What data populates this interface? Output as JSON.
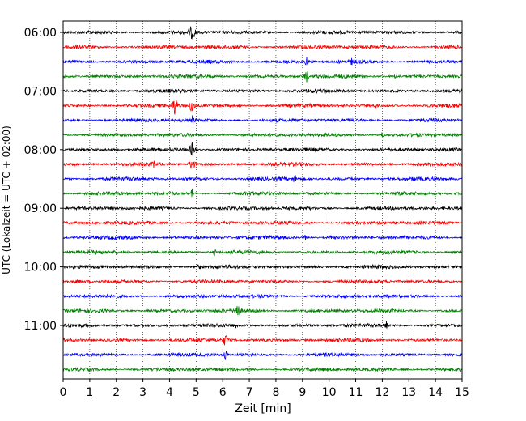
{
  "chart_data": {
    "type": "line",
    "title": "",
    "xlabel": "Zeit  [min]",
    "ylabel": "UTC (Lokalzeit = UTC + 02:00)",
    "xlim": [
      0,
      15
    ],
    "x_ticks": [
      0,
      1,
      2,
      3,
      4,
      5,
      6,
      7,
      8,
      9,
      10,
      11,
      12,
      13,
      14,
      15
    ],
    "y_tick_labels": [
      "06:00",
      "07:00",
      "08:00",
      "09:00",
      "10:00",
      "11:00"
    ],
    "y_tick_trace_index": [
      0,
      4,
      8,
      12,
      16,
      20
    ],
    "grid": "vertical dotted at each minute",
    "traces_start": "06:00",
    "trace_interval_min": 15,
    "color_cycle": [
      "#000000",
      "#ff0000",
      "#0000ff",
      "#008000"
    ],
    "trace_count": 24,
    "events": [
      {
        "trace": 0,
        "minute": 4.85,
        "amp": 10,
        "span": 3
      },
      {
        "trace": 2,
        "minute": 8.4,
        "amp": 7,
        "span": 1
      },
      {
        "trace": 2,
        "minute": 9.15,
        "amp": 8,
        "span": 1
      },
      {
        "trace": 2,
        "minute": 10.85,
        "amp": 6,
        "span": 1
      },
      {
        "trace": 3,
        "minute": 9.15,
        "amp": 14,
        "span": 1
      },
      {
        "trace": 3,
        "minute": 12.5,
        "amp": 5,
        "span": 1
      },
      {
        "trace": 5,
        "minute": 4.2,
        "amp": 14,
        "span": 2
      },
      {
        "trace": 5,
        "minute": 4.85,
        "amp": 12,
        "span": 2
      },
      {
        "trace": 5,
        "minute": 11.75,
        "amp": 6,
        "span": 1
      },
      {
        "trace": 6,
        "minute": 4.85,
        "amp": 10,
        "span": 1
      },
      {
        "trace": 7,
        "minute": 12.0,
        "amp": 6,
        "span": 1
      },
      {
        "trace": 8,
        "minute": 4.85,
        "amp": 10,
        "span": 2
      },
      {
        "trace": 9,
        "minute": 3.4,
        "amp": 7,
        "span": 1
      },
      {
        "trace": 9,
        "minute": 4.85,
        "amp": 10,
        "span": 2
      },
      {
        "trace": 10,
        "minute": 8.7,
        "amp": 9,
        "span": 1
      },
      {
        "trace": 11,
        "minute": 4.85,
        "amp": 8,
        "span": 1
      },
      {
        "trace": 14,
        "minute": 9.1,
        "amp": 5,
        "span": 1
      },
      {
        "trace": 14,
        "minute": 10.05,
        "amp": 5,
        "span": 1
      },
      {
        "trace": 15,
        "minute": 5.7,
        "amp": 6,
        "span": 1
      },
      {
        "trace": 16,
        "minute": 5.1,
        "amp": 9,
        "span": 1
      },
      {
        "trace": 19,
        "minute": 6.55,
        "amp": 12,
        "span": 2
      },
      {
        "trace": 20,
        "minute": 6.5,
        "amp": 6,
        "span": 1
      },
      {
        "trace": 20,
        "minute": 12.15,
        "amp": 7,
        "span": 1
      },
      {
        "trace": 21,
        "minute": 6.1,
        "amp": 9,
        "span": 2
      },
      {
        "trace": 22,
        "minute": 6.1,
        "amp": 10,
        "span": 1
      }
    ]
  }
}
